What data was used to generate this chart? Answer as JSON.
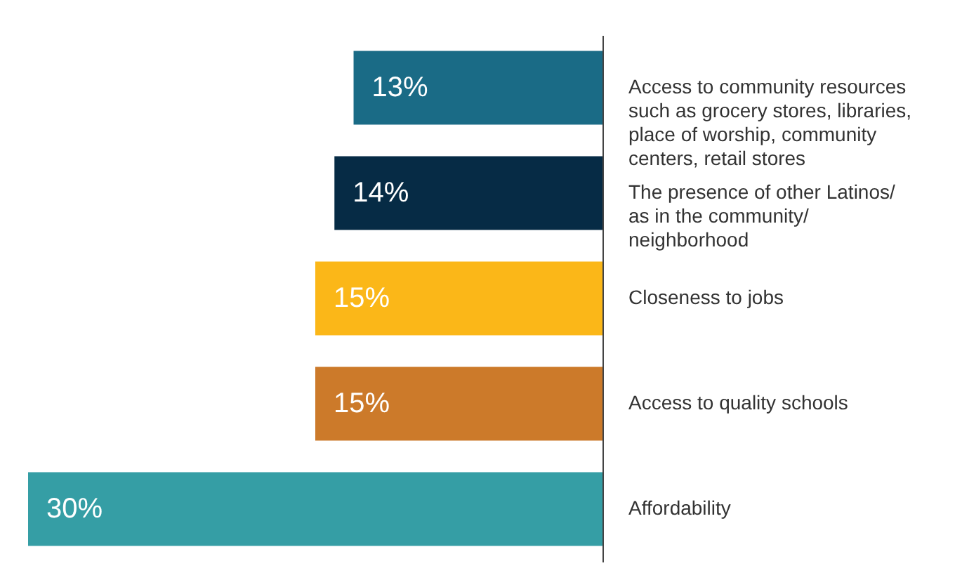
{
  "chart_data": {
    "type": "bar",
    "orientation": "horizontal",
    "categories": [
      "Access to community resources\nsuch as grocery stores, libraries,\nplace of worship, community\ncenters, retail stores",
      "The presence of other Latinos/\nas in the community/\nneighborhood",
      "Closeness to jobs",
      "Access to quality schools",
      "Affordability"
    ],
    "values": [
      13,
      14,
      15,
      15,
      30
    ],
    "value_labels": [
      "13%",
      "14%",
      "15%",
      "15%",
      "30%"
    ],
    "colors": [
      "#1a6b86",
      "#062b45",
      "#fbb718",
      "#cc7a2a",
      "#359ea5"
    ]
  }
}
